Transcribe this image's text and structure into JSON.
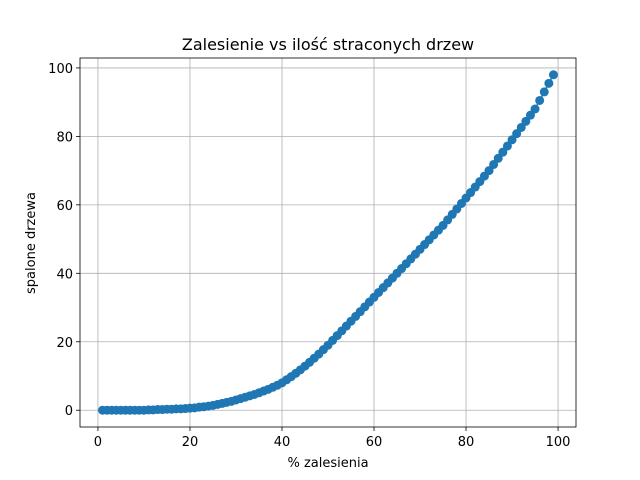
{
  "chart_data": {
    "type": "line",
    "title": "Zalesienie vs ilość straconych drzew",
    "xlabel": "% zalesienia",
    "ylabel": "spalone drzewa",
    "x": [
      1,
      2,
      3,
      4,
      5,
      6,
      7,
      8,
      9,
      10,
      11,
      12,
      13,
      14,
      15,
      16,
      17,
      18,
      19,
      20,
      21,
      22,
      23,
      24,
      25,
      26,
      27,
      28,
      29,
      30,
      31,
      32,
      33,
      34,
      35,
      36,
      37,
      38,
      39,
      40,
      41,
      42,
      43,
      44,
      45,
      46,
      47,
      48,
      49,
      50,
      51,
      52,
      53,
      54,
      55,
      56,
      57,
      58,
      59,
      60,
      61,
      62,
      63,
      64,
      65,
      66,
      67,
      68,
      69,
      70,
      71,
      72,
      73,
      74,
      75,
      76,
      77,
      78,
      79,
      80,
      81,
      82,
      83,
      84,
      85,
      86,
      87,
      88,
      89,
      90,
      91,
      92,
      93,
      94,
      95,
      96,
      97,
      98,
      99
    ],
    "series": [
      {
        "color": "#1f77b4",
        "values": [
          0,
          0,
          0,
          0,
          0,
          0,
          0,
          0,
          0,
          0,
          0.1,
          0.1,
          0.2,
          0.2,
          0.3,
          0.3,
          0.4,
          0.4,
          0.5,
          0.6,
          0.7,
          0.9,
          1.0,
          1.2,
          1.4,
          1.7,
          2.0,
          2.3,
          2.6,
          3.0,
          3.4,
          3.8,
          4.2,
          4.6,
          5.1,
          5.6,
          6.1,
          6.7,
          7.3,
          8.0,
          8.9,
          9.8,
          10.8,
          11.8,
          12.9,
          14.0,
          15.2,
          16.4,
          17.7,
          19.0,
          20.4,
          21.8,
          23.2,
          24.6,
          26.0,
          27.4,
          28.8,
          30.2,
          31.6,
          33.0,
          34.4,
          35.8,
          37.2,
          38.6,
          40.0,
          41.4,
          42.8,
          44.2,
          45.6,
          47.0,
          48.4,
          49.8,
          51.2,
          52.6,
          54.0,
          55.6,
          57.2,
          58.8,
          60.4,
          62.0,
          63.6,
          65.2,
          66.8,
          68.4,
          70.0,
          71.8,
          73.6,
          75.4,
          77.2,
          79.0,
          80.8,
          82.6,
          84.4,
          86.2,
          88.0,
          90.5,
          93.0,
          95.5,
          98.0
        ]
      }
    ],
    "xlim": [
      -3.9,
      103.9
    ],
    "ylim": [
      -4.9,
      102.9
    ],
    "xticks": [
      0,
      20,
      40,
      60,
      80,
      100
    ],
    "yticks": [
      0,
      20,
      40,
      60,
      80,
      100
    ],
    "grid": true
  }
}
